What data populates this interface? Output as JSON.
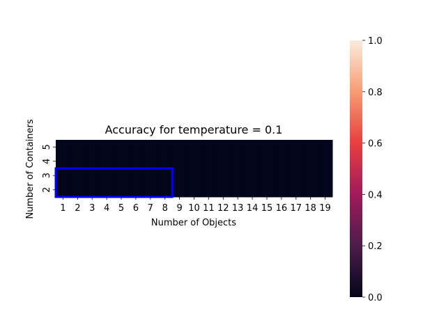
{
  "chart_data": {
    "type": "heatmap",
    "title": "Accuracy for temperature = 0.1",
    "xlabel": "Number of Objects",
    "ylabel": "Number of Containers",
    "x": [
      "1",
      "2",
      "3",
      "4",
      "5",
      "6",
      "7",
      "8",
      "9",
      "10",
      "11",
      "12",
      "13",
      "14",
      "15",
      "16",
      "17",
      "18",
      "19"
    ],
    "y": [
      "2",
      "3",
      "4",
      "5"
    ],
    "values": [
      [
        0,
        0,
        0,
        0,
        0,
        0,
        0,
        0,
        0,
        0,
        0,
        0,
        0,
        0,
        0,
        0,
        0,
        0,
        0
      ],
      [
        0,
        0,
        0,
        0,
        0,
        0,
        0,
        0,
        0,
        0,
        0,
        0,
        0,
        0,
        0,
        0,
        0,
        0,
        0
      ],
      [
        0,
        0,
        0,
        0,
        0,
        0,
        0,
        0,
        0,
        0,
        0,
        0,
        0,
        0,
        0,
        0,
        0,
        0,
        0
      ],
      [
        0,
        0,
        0,
        0,
        0,
        0,
        0,
        0,
        0,
        0,
        0,
        0,
        0,
        0,
        0,
        0,
        0,
        0,
        0
      ]
    ],
    "colorbar": {
      "min": 0,
      "max": 1,
      "ticks": [
        "0.0",
        "0.2",
        "0.4",
        "0.6",
        "0.8",
        "1.0"
      ],
      "colormap": "rocket",
      "colors": [
        "#03051a",
        "#4c1d4b",
        "#a11a5b",
        "#e83f3f",
        "#f69c73",
        "#faebdd"
      ]
    },
    "highlight_box": {
      "x_from": "1",
      "x_to": "8",
      "y_from": "2",
      "y_to": "3",
      "color": "#0000ff"
    }
  }
}
